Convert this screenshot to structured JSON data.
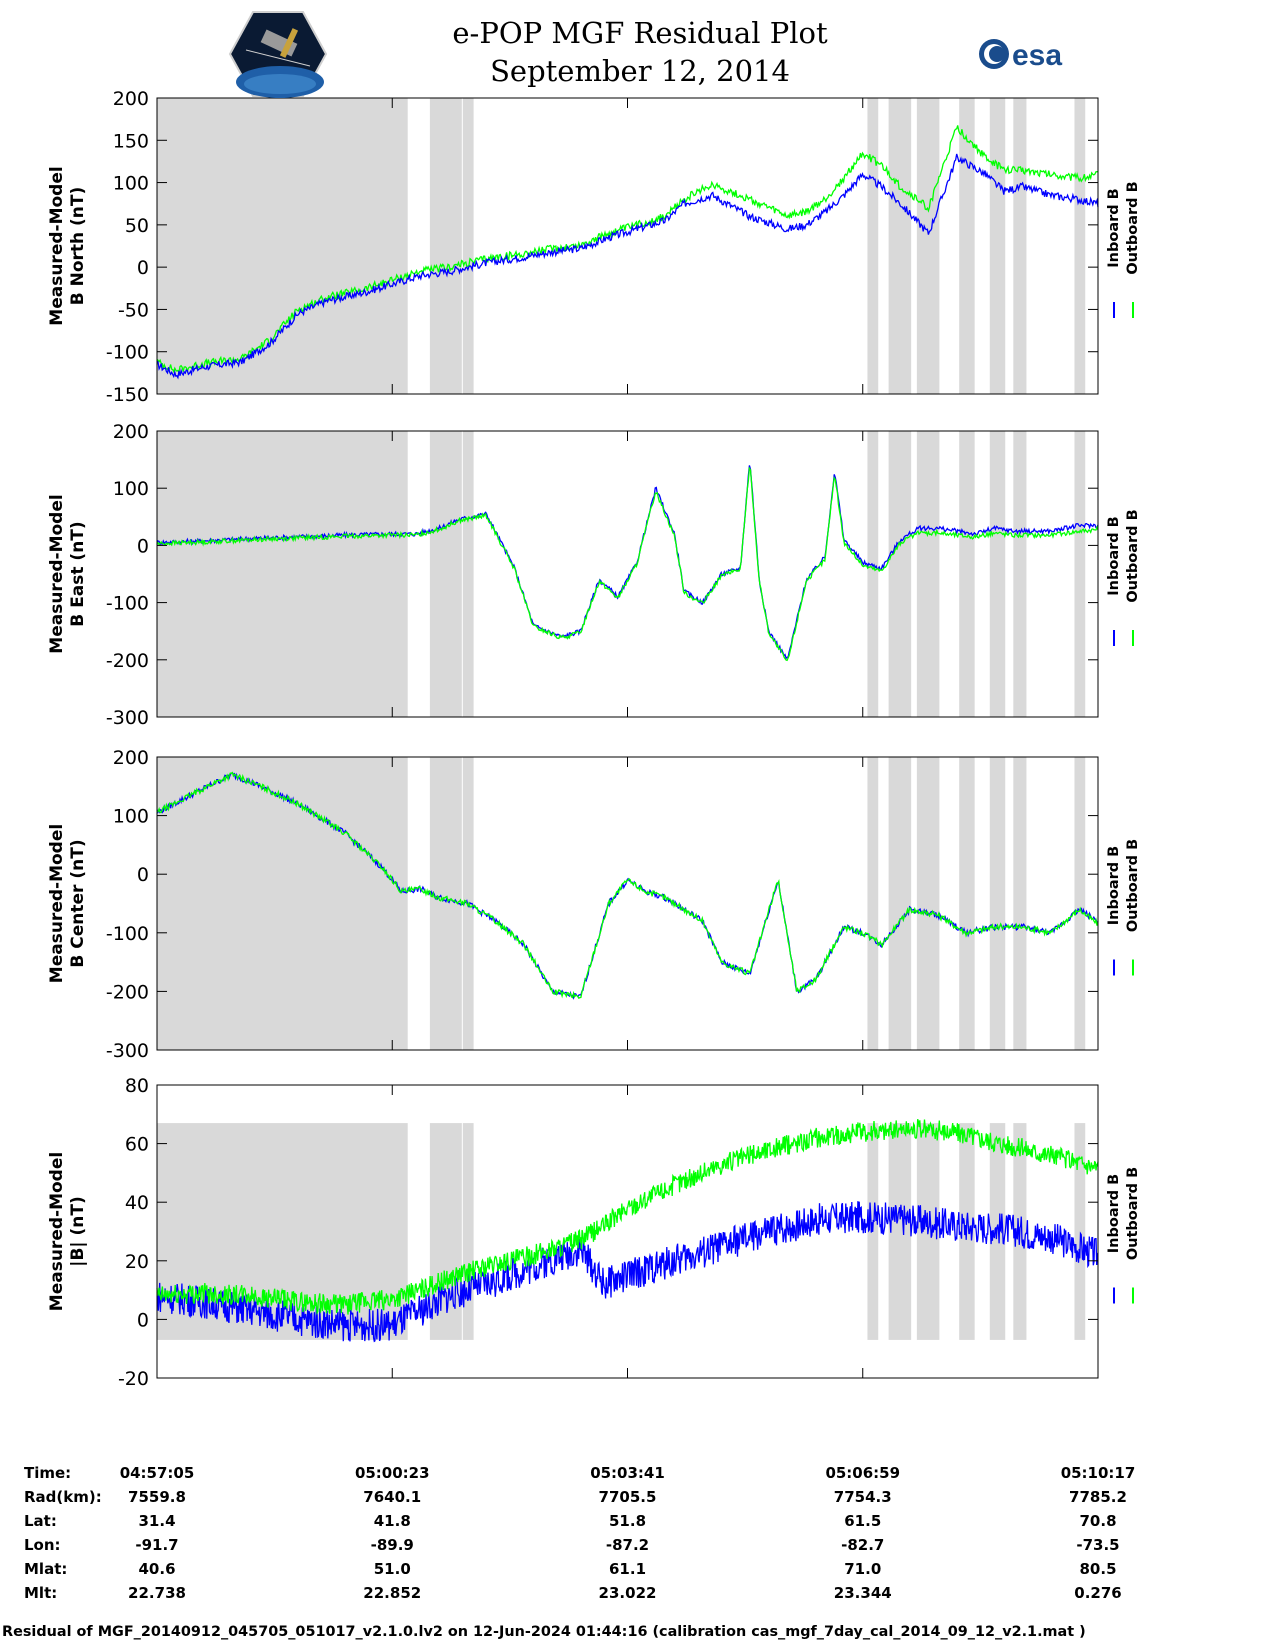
{
  "header": {
    "title_line1": "e-POP MGF Residual Plot",
    "title_line2": "September 12, 2014",
    "logo_left": "cassiope-satellite-logo",
    "logo_right_text": "esa"
  },
  "colors": {
    "inboard": "#0000ff",
    "outboard": "#00ff00",
    "shade": "#d9d9d9",
    "axis": "#000000"
  },
  "chart_data": [
    {
      "type": "line",
      "ylabel_line1": "Measured-Model",
      "ylabel_line2": "B North (nT)",
      "ylim": [
        -150,
        200
      ],
      "yticks": [
        -150,
        -100,
        -50,
        0,
        50,
        100,
        150,
        200
      ],
      "legend": [
        "Inboard B",
        "Outboard B"
      ],
      "series": [
        {
          "name": "Inboard B",
          "x": [
            0,
            4,
            10,
            18,
            24,
            30,
            36,
            44,
            50,
            56,
            62,
            70,
            78,
            84,
            90,
            96,
            102,
            108,
            112,
            118,
            126,
            134,
            138,
            142,
            146,
            150,
            154,
            158,
            164,
            170,
            176,
            180,
            184,
            190,
            196,
            200
          ],
          "values": [
            -115,
            -127,
            -118,
            -112,
            -90,
            -55,
            -40,
            -30,
            -20,
            -10,
            -5,
            5,
            12,
            18,
            22,
            35,
            45,
            55,
            75,
            85,
            60,
            45,
            50,
            65,
            85,
            110,
            95,
            75,
            40,
            130,
            110,
            90,
            95,
            85,
            80,
            75
          ]
        },
        {
          "name": "Outboard B",
          "x": [
            0,
            4,
            10,
            18,
            24,
            30,
            36,
            44,
            50,
            56,
            62,
            70,
            78,
            84,
            90,
            96,
            102,
            108,
            112,
            118,
            126,
            134,
            138,
            142,
            146,
            150,
            154,
            158,
            164,
            170,
            176,
            180,
            184,
            190,
            196,
            200
          ],
          "values": [
            -112,
            -122,
            -114,
            -108,
            -86,
            -50,
            -36,
            -26,
            -15,
            -5,
            0,
            10,
            16,
            22,
            26,
            40,
            50,
            60,
            80,
            98,
            80,
            60,
            65,
            80,
            105,
            135,
            120,
            95,
            70,
            165,
            130,
            115,
            115,
            110,
            105,
            110
          ]
        }
      ]
    },
    {
      "type": "line",
      "ylabel_line1": "Measured-Model",
      "ylabel_line2": "B East (nT)",
      "ylim": [
        -300,
        200
      ],
      "yticks": [
        -300,
        -200,
        -100,
        0,
        100,
        200
      ],
      "legend": [
        "Inboard B",
        "Outboard B"
      ],
      "series": [
        {
          "name": "Inboard B",
          "x": [
            0,
            10,
            20,
            30,
            40,
            50,
            55,
            60,
            64,
            70,
            76,
            80,
            86,
            90,
            94,
            98,
            102,
            106,
            110,
            112,
            116,
            120,
            124,
            126,
            128,
            130,
            134,
            138,
            142,
            144,
            146,
            150,
            154,
            158,
            162,
            166,
            170,
            174,
            178,
            182,
            186,
            190,
            196,
            200
          ],
          "values": [
            5,
            8,
            12,
            15,
            18,
            20,
            20,
            30,
            45,
            55,
            -40,
            -140,
            -160,
            -150,
            -60,
            -90,
            -30,
            100,
            20,
            -80,
            -100,
            -50,
            -40,
            150,
            -60,
            -150,
            -200,
            -60,
            -20,
            130,
            10,
            -30,
            -40,
            10,
            30,
            30,
            25,
            20,
            30,
            25,
            25,
            25,
            35,
            35
          ]
        },
        {
          "name": "Outboard B",
          "x": [
            0,
            10,
            20,
            30,
            40,
            50,
            55,
            60,
            64,
            70,
            76,
            80,
            86,
            90,
            94,
            98,
            102,
            106,
            110,
            112,
            116,
            120,
            124,
            126,
            128,
            130,
            134,
            138,
            142,
            144,
            146,
            150,
            154,
            158,
            162,
            166,
            170,
            174,
            178,
            182,
            186,
            190,
            196,
            200
          ],
          "values": [
            3,
            6,
            10,
            13,
            16,
            18,
            18,
            28,
            43,
            52,
            -42,
            -142,
            -162,
            -152,
            -62,
            -92,
            -32,
            95,
            17,
            -82,
            -102,
            -52,
            -42,
            145,
            -62,
            -152,
            -205,
            -62,
            -25,
            125,
            5,
            -35,
            -45,
            5,
            22,
            22,
            18,
            15,
            22,
            18,
            18,
            18,
            25,
            28
          ]
        }
      ]
    },
    {
      "type": "line",
      "ylabel_line1": "Measured-Model",
      "ylabel_line2": "B Center (nT)",
      "ylim": [
        -300,
        200
      ],
      "yticks": [
        -300,
        -200,
        -100,
        0,
        100,
        200
      ],
      "legend": [
        "Inboard B",
        "Outboard B"
      ],
      "series": [
        {
          "name": "Inboard B",
          "x": [
            0,
            6,
            12,
            16,
            22,
            30,
            40,
            48,
            52,
            56,
            60,
            66,
            72,
            78,
            84,
            90,
            96,
            100,
            104,
            108,
            112,
            116,
            120,
            126,
            132,
            136,
            140,
            144,
            146,
            150,
            154,
            160,
            166,
            172,
            178,
            184,
            190,
            196,
            200
          ],
          "values": [
            105,
            130,
            155,
            170,
            150,
            120,
            70,
            10,
            -30,
            -25,
            -40,
            -50,
            -80,
            -120,
            -200,
            -210,
            -50,
            -10,
            -30,
            -40,
            -60,
            -80,
            -150,
            -170,
            -10,
            -200,
            -180,
            -120,
            -90,
            -100,
            -120,
            -60,
            -70,
            -100,
            -90,
            -90,
            -100,
            -60,
            -80
          ]
        },
        {
          "name": "Outboard B",
          "x": [
            0,
            6,
            12,
            16,
            22,
            30,
            40,
            48,
            52,
            56,
            60,
            66,
            72,
            78,
            84,
            90,
            96,
            100,
            104,
            108,
            112,
            116,
            120,
            126,
            132,
            136,
            140,
            144,
            146,
            150,
            154,
            160,
            166,
            172,
            178,
            184,
            190,
            196,
            200
          ],
          "values": [
            105,
            130,
            155,
            170,
            150,
            120,
            70,
            10,
            -30,
            -25,
            -40,
            -50,
            -80,
            -120,
            -200,
            -210,
            -50,
            -10,
            -30,
            -40,
            -60,
            -80,
            -150,
            -170,
            -10,
            -200,
            -180,
            -120,
            -90,
            -100,
            -120,
            -60,
            -70,
            -100,
            -90,
            -90,
            -100,
            -60,
            -85
          ]
        }
      ]
    },
    {
      "type": "line",
      "ylabel_line1": "Measured-Model",
      "ylabel_line2": "|B| (nT)",
      "ylim": [
        -20,
        80
      ],
      "yticks": [
        -20,
        0,
        20,
        40,
        60,
        80
      ],
      "legend": [
        "Inboard B",
        "Outboard B"
      ],
      "series": [
        {
          "name": "Inboard B",
          "x": [
            0,
            10,
            20,
            30,
            40,
            50,
            56,
            62,
            70,
            80,
            90,
            95,
            100,
            110,
            120,
            130,
            140,
            150,
            160,
            170,
            180,
            190,
            200
          ],
          "values": [
            8,
            6,
            3,
            0,
            -2,
            -2,
            3,
            8,
            12,
            18,
            24,
            12,
            15,
            20,
            25,
            30,
            34,
            35,
            34,
            32,
            31,
            28,
            22
          ]
        },
        {
          "name": "Outboard B",
          "x": [
            0,
            10,
            20,
            30,
            40,
            50,
            56,
            62,
            70,
            80,
            90,
            95,
            100,
            110,
            120,
            130,
            140,
            150,
            160,
            170,
            180,
            190,
            200
          ],
          "values": [
            8,
            9,
            8,
            6,
            5,
            7,
            10,
            14,
            18,
            22,
            27,
            32,
            38,
            46,
            53,
            58,
            62,
            64,
            65,
            64,
            60,
            56,
            52
          ]
        }
      ]
    }
  ],
  "shading_x_ranges": [
    [
      0,
      53.5
    ],
    [
      58,
      65
    ],
    [
      65,
      67.5
    ],
    [
      151,
      153.5
    ],
    [
      155.5,
      160.5
    ],
    [
      161.5,
      166.5
    ],
    [
      170.5,
      174
    ],
    [
      177,
      180.5
    ],
    [
      182,
      185
    ],
    [
      195,
      197.5
    ]
  ],
  "x_axis": {
    "xlim": [
      0,
      200
    ],
    "xticks": [
      0,
      50,
      100,
      150,
      200
    ]
  },
  "info_table": {
    "rows": [
      {
        "label": "Time:",
        "values": [
          "04:57:05",
          "05:00:23",
          "05:03:41",
          "05:06:59",
          "05:10:17"
        ]
      },
      {
        "label": "Rad(km):",
        "values": [
          "7559.8",
          "7640.1",
          "7705.5",
          "7754.3",
          "7785.2"
        ]
      },
      {
        "label": "Lat:",
        "values": [
          "31.4",
          "41.8",
          "51.8",
          "61.5",
          "70.8"
        ]
      },
      {
        "label": "Lon:",
        "values": [
          "-91.7",
          "-89.9",
          "-87.2",
          "-82.7",
          "-73.5"
        ]
      },
      {
        "label": "Mlat:",
        "values": [
          "40.6",
          "51.0",
          "61.1",
          "71.0",
          "80.5"
        ]
      },
      {
        "label": "Mlt:",
        "values": [
          "22.738",
          "22.852",
          "23.022",
          "23.344",
          "0.276"
        ]
      }
    ]
  },
  "footer": "Residual of MGF_20140912_045705_051017_v2.1.0.lv2 on 12-Jun-2024 01:44:16 (calibration cas_mgf_7day_cal_2014_09_12_v2.1.mat )"
}
